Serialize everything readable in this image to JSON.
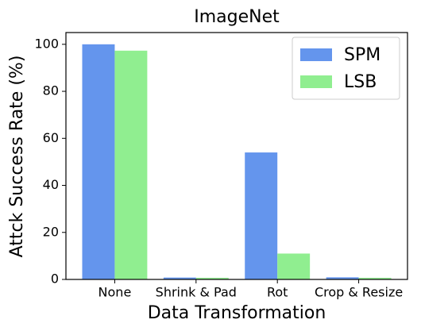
{
  "chart_data": {
    "type": "bar",
    "title": "ImageNet",
    "x_label": "Data Transformation",
    "y_label": "Attck Success Rate (%)",
    "categories": [
      "None",
      "Shrink & Pad",
      "Rot",
      "Crop & Resize"
    ],
    "series": [
      {
        "name": "SPM",
        "color": "#6495ed",
        "values": [
          100,
          0.8,
          54,
          0.9
        ]
      },
      {
        "name": "LSB",
        "color": "#90ee90",
        "values": [
          97.3,
          0.7,
          11,
          0.7
        ]
      }
    ],
    "ylim": [
      0,
      105
    ],
    "yticks": [
      0,
      20,
      40,
      60,
      80,
      100
    ],
    "legend": "upper right"
  }
}
